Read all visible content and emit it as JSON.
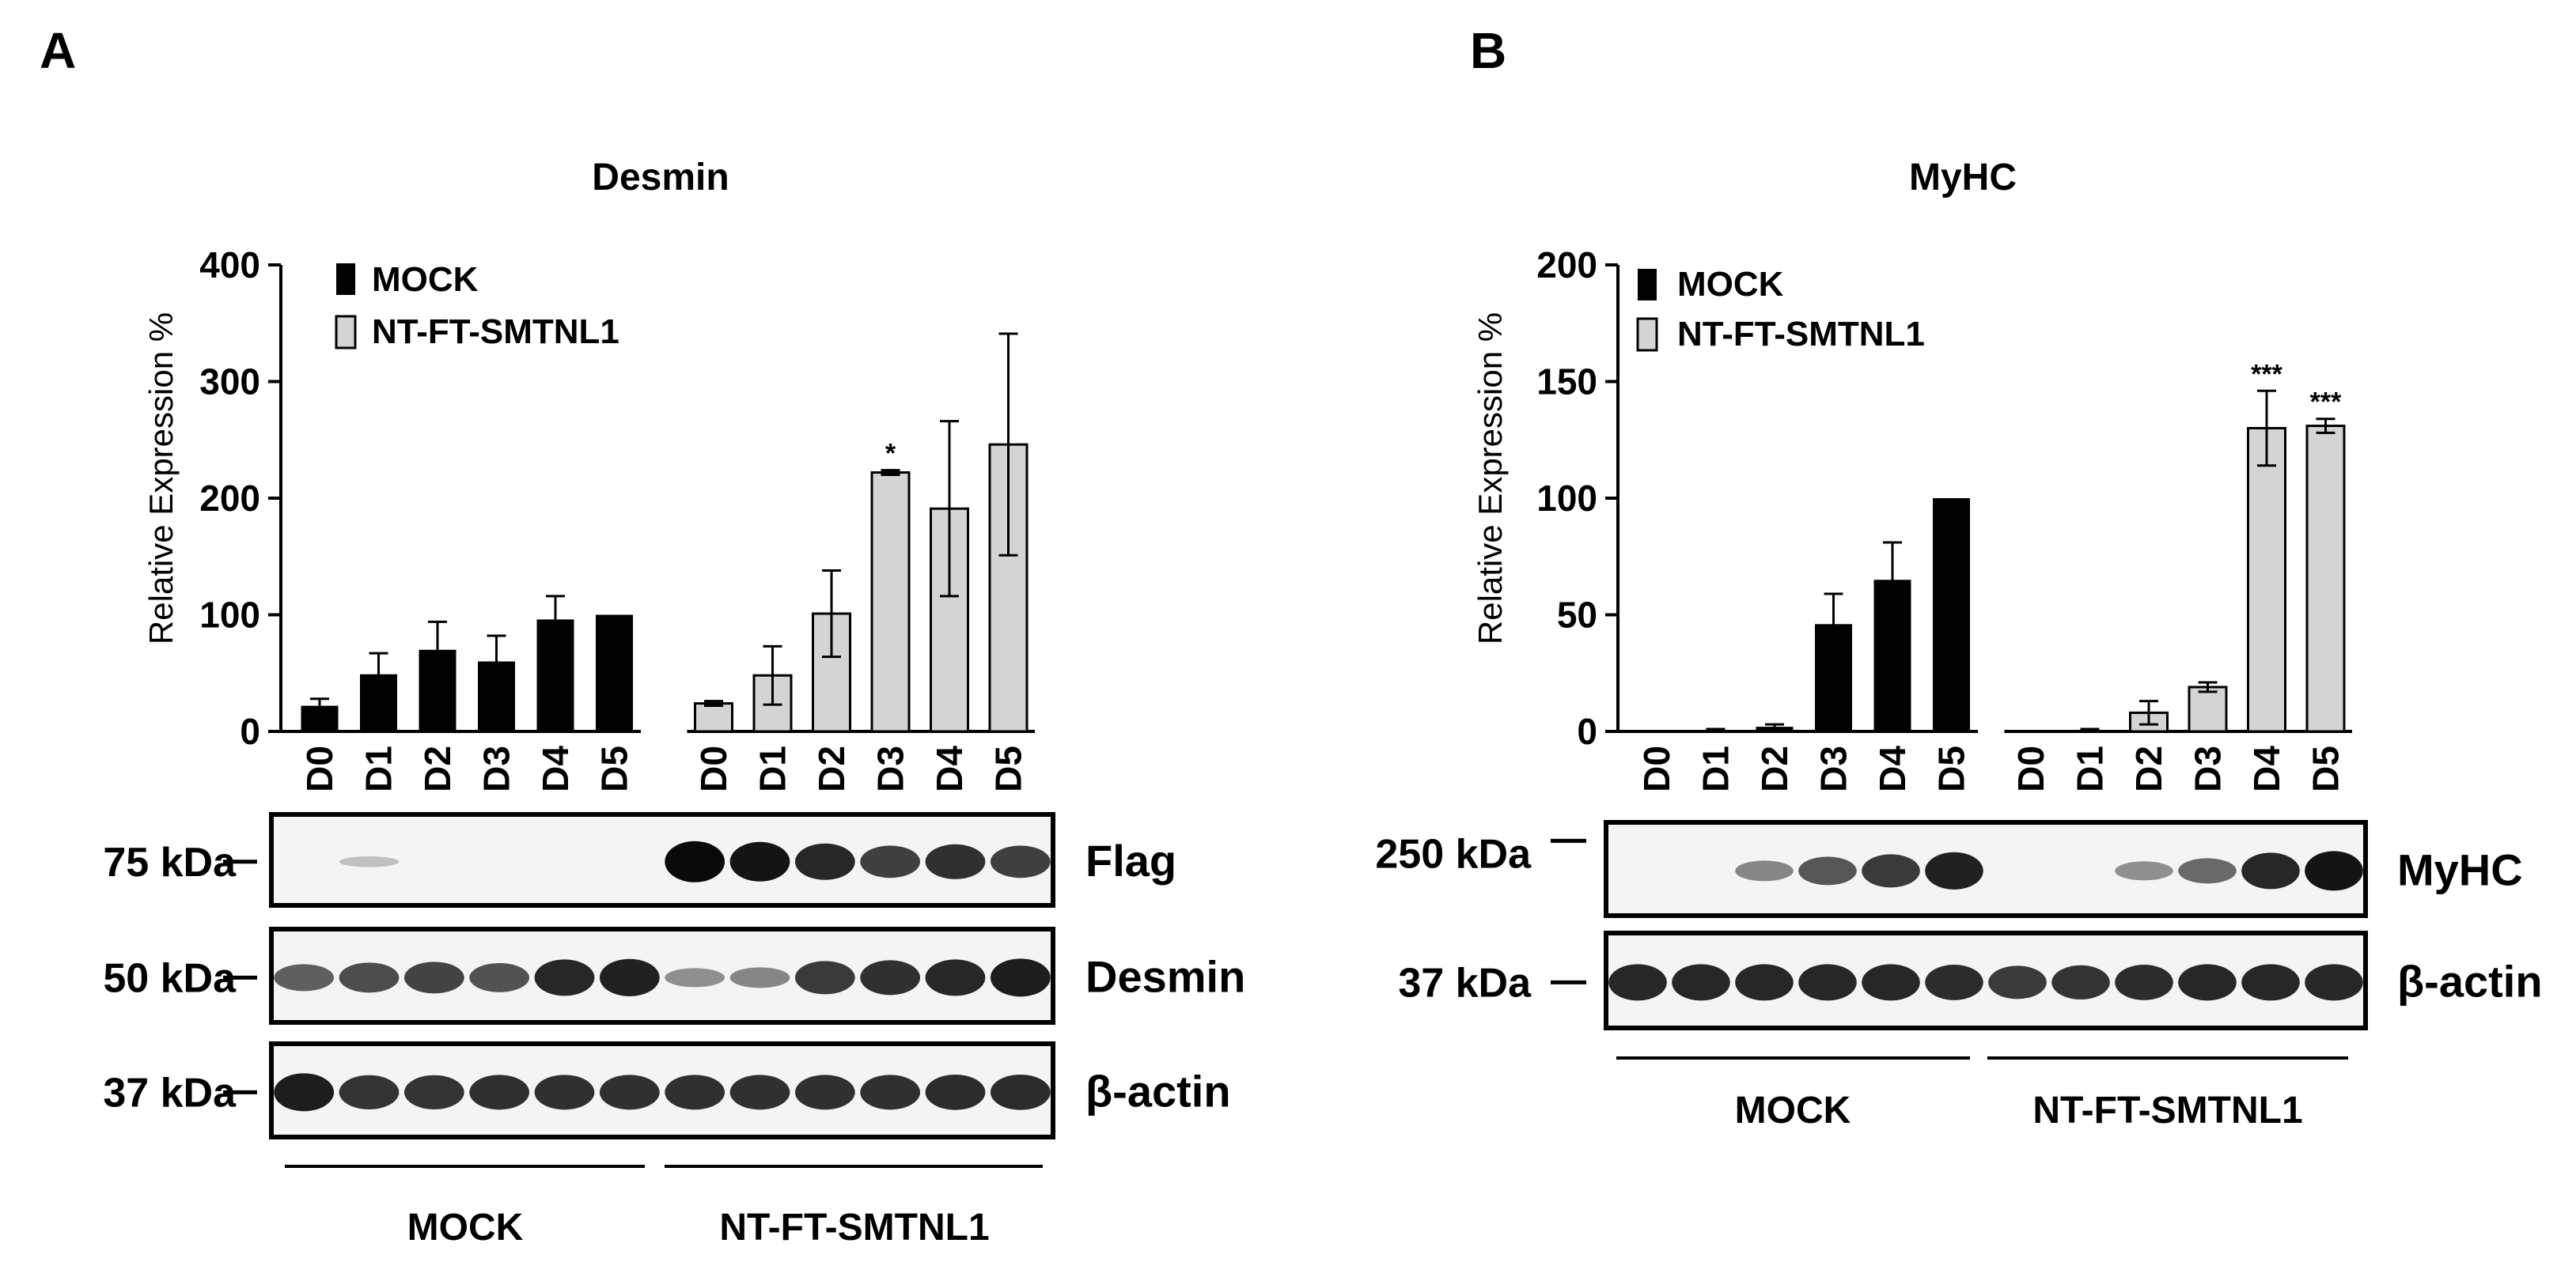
{
  "panels": {
    "a": {
      "letter": "A"
    },
    "b": {
      "letter": "B"
    }
  },
  "legend": {
    "mock": "MOCK",
    "nt": "NT-FT-SMTNL1"
  },
  "chart_data": [
    {
      "type": "bar",
      "title": "Desmin",
      "xlabel": "",
      "ylabel": "Relative Expression %",
      "ylim": [
        0,
        400
      ],
      "yticks": [
        0,
        100,
        200,
        300,
        400
      ],
      "categories": [
        "D0",
        "D1",
        "D2",
        "D3",
        "D4",
        "D5"
      ],
      "series": [
        {
          "name": "MOCK",
          "color": "#000000",
          "values": [
            22,
            49,
            70,
            60,
            96,
            100
          ],
          "errors": [
            6,
            18,
            24,
            22,
            20,
            0
          ],
          "significance": [
            "",
            "",
            "",
            "",
            "",
            ""
          ]
        },
        {
          "name": "NT-FT-SMTNL1",
          "color": "#d4d4d4",
          "values": [
            24,
            48,
            101,
            222,
            191,
            246
          ],
          "errors": [
            2,
            25,
            37,
            2,
            75,
            95
          ],
          "significance": [
            "",
            "",
            "",
            "*",
            "",
            ""
          ]
        }
      ],
      "legend_position": "top-left"
    },
    {
      "type": "bar",
      "title": "MyHC",
      "xlabel": "",
      "ylabel": "Relative Expression %",
      "ylim": [
        0,
        200
      ],
      "yticks": [
        0,
        50,
        100,
        150,
        200
      ],
      "categories": [
        "D0",
        "D1",
        "D2",
        "D3",
        "D4",
        "D5"
      ],
      "series": [
        {
          "name": "MOCK",
          "color": "#000000",
          "values": [
            0,
            0,
            2,
            46,
            65,
            100
          ],
          "errors": [
            0,
            1,
            1,
            13,
            16,
            0
          ],
          "significance": [
            "",
            "",
            "",
            "",
            "",
            ""
          ]
        },
        {
          "name": "NT-FT-SMTNL1",
          "color": "#d4d4d4",
          "values": [
            0,
            0,
            8,
            19,
            130,
            131
          ],
          "errors": [
            0,
            1,
            5,
            2,
            16,
            3
          ],
          "significance": [
            "",
            "",
            "",
            "",
            "***",
            "***"
          ]
        }
      ],
      "legend_position": "top-left"
    }
  ],
  "blots": {
    "a": [
      {
        "name": "Flag",
        "kda": "75 kDa",
        "intensity": [
          0,
          0.04,
          0,
          0,
          0,
          0,
          1,
          0.95,
          0.85,
          0.72,
          0.8,
          0.72
        ]
      },
      {
        "name": "Desmin",
        "kda": "50 kDa",
        "intensity": [
          0.55,
          0.65,
          0.7,
          0.62,
          0.85,
          0.88,
          0.3,
          0.35,
          0.75,
          0.8,
          0.85,
          0.9
        ]
      },
      {
        "name": "β-actin",
        "kda": "37 kDa",
        "intensity": [
          0.9,
          0.78,
          0.78,
          0.8,
          0.8,
          0.8,
          0.8,
          0.8,
          0.8,
          0.8,
          0.82,
          0.82
        ]
      }
    ],
    "b": [
      {
        "name": "MyHC",
        "kda": "250 kDa",
        "intensity": [
          0,
          0,
          0.35,
          0.6,
          0.75,
          0.88,
          0,
          0,
          0.3,
          0.5,
          0.85,
          0.95
        ]
      },
      {
        "name": "β-actin",
        "kda": "37 kDa",
        "intensity": [
          0.85,
          0.85,
          0.85,
          0.85,
          0.85,
          0.82,
          0.75,
          0.78,
          0.82,
          0.85,
          0.85,
          0.85
        ]
      }
    ]
  },
  "groups": {
    "mock": "MOCK",
    "nt": "NT-FT-SMTNL1"
  }
}
